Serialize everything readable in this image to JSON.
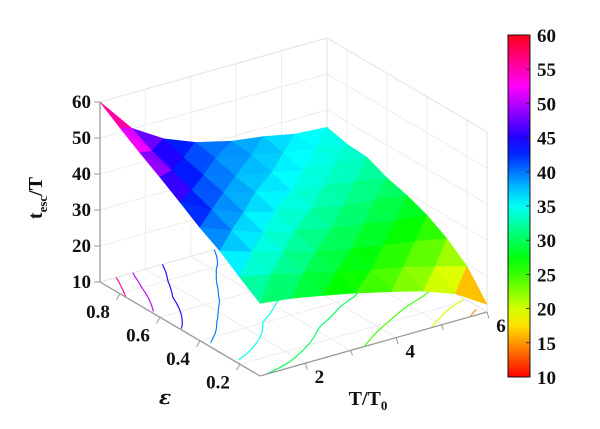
{
  "figure": {
    "background": "#ffffff",
    "axis_color": "#999999",
    "grid_color": "#ededed",
    "edge_color": "#e2e2e2",
    "text_color": "#111111"
  },
  "labels": {
    "zlabel": {
      "pre": "t",
      "sub": "esc",
      "post": "/T"
    },
    "xlabel": {
      "pre": "T/T",
      "sub": "0"
    },
    "ylabel": "ε"
  },
  "axes": {
    "zticks": [
      10,
      20,
      30,
      40,
      50,
      60
    ],
    "yticks": [
      0.2,
      0.4,
      0.6,
      0.8
    ],
    "xticks_labeled": [
      2,
      4,
      6
    ],
    "xticks_minor": [
      3,
      5
    ]
  },
  "colorbar": {
    "vmin": 10,
    "vmax": 60,
    "ticks": [
      10,
      15,
      20,
      25,
      30,
      35,
      40,
      45,
      50,
      55,
      60
    ]
  },
  "chart_data": {
    "type": "surface3d",
    "title": "",
    "xlabel": "T/T0",
    "ylabel": "epsilon",
    "zlabel": "t_esc/T",
    "colormap": "hsv",
    "grid": true,
    "colorbar_shown": true,
    "xlim": [
      1,
      6
    ],
    "ylim": [
      0.1,
      0.9
    ],
    "zlim": [
      10,
      60
    ],
    "x_T_over_T0": [
      1.0,
      1.7,
      2.4,
      3.1,
      3.9,
      4.6,
      5.3,
      6.0
    ],
    "y_epsilon": [
      0.1,
      0.2,
      0.3,
      0.4,
      0.5,
      0.6,
      0.7,
      0.8,
      0.9
    ],
    "z_rows_by_epsilon": [
      [
        30.2,
        29.1,
        27.4,
        25.6,
        23.1,
        20.8,
        17.6,
        12.1
      ],
      [
        34.1,
        32.6,
        30.3,
        28.1,
        25.9,
        24.1,
        21.8,
        19.4
      ],
      [
        38.2,
        35.4,
        33.1,
        30.4,
        28.6,
        26.9,
        25.6,
        23.8
      ],
      [
        41.4,
        38.1,
        34.9,
        33.1,
        30.8,
        29.6,
        27.9,
        27.1
      ],
      [
        45.2,
        40.6,
        37.3,
        35.1,
        33.2,
        31.4,
        30.6,
        29.3
      ],
      [
        48.9,
        42.8,
        39.6,
        37.2,
        34.8,
        33.7,
        32.3,
        30.9
      ],
      [
        52.4,
        45.1,
        41.2,
        38.3,
        36.6,
        34.8,
        34.2,
        33.4
      ],
      [
        56.1,
        47.2,
        42.8,
        40.1,
        38.2,
        36.3,
        35.1,
        33.8
      ],
      [
        60.0,
        50.2,
        44.8,
        41.3,
        38.8,
        37.6,
        35.8,
        35.2
      ]
    ],
    "contour_levels": [
      15,
      20,
      25,
      30,
      35,
      40,
      45,
      50,
      55
    ]
  }
}
